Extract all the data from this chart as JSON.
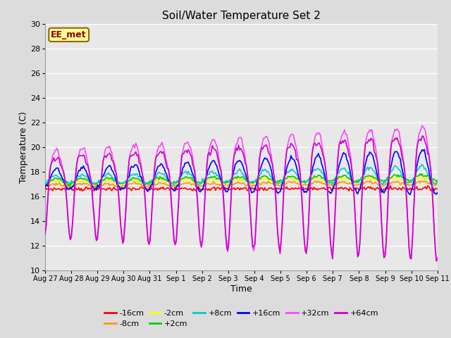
{
  "title": "Soil/Water Temperature Set 2",
  "xlabel": "Time",
  "ylabel": "Temperature (C)",
  "ylim": [
    10,
    30
  ],
  "annotation_text": "EE_met",
  "annotation_color": "#8B0000",
  "annotation_bg": "#FFFF99",
  "annotation_border": "#996600",
  "series_order": [
    "-16cm",
    "-8cm",
    "-2cm",
    "+2cm",
    "+8cm",
    "+16cm",
    "+32cm",
    "+64cm"
  ],
  "series_colors": {
    "-16cm": "#FF0000",
    "-8cm": "#FF9900",
    "-2cm": "#FFFF00",
    "+2cm": "#00CC00",
    "+8cm": "#00CCCC",
    "+16cm": "#0000FF",
    "+32cm": "#FF44FF",
    "+64cm": "#CC00CC"
  },
  "bg_color": "#DCDCDC",
  "plot_bg_color": "#E8E8E8",
  "grid_color": "#FFFFFF",
  "n_days": 15,
  "samples_per_day": 24,
  "tick_labels": [
    "Aug 27",
    "Aug 28",
    "Aug 29",
    "Aug 30",
    "Aug 31",
    "Sep 1",
    "Sep 2",
    "Sep 3",
    "Sep 4",
    "Sep 5",
    "Sep 6",
    "Sep 7",
    "Sep 8",
    "Sep 9",
    "Sep 10",
    "Sep 11"
  ],
  "figsize": [
    6.4,
    4.8
  ],
  "dpi": 100
}
